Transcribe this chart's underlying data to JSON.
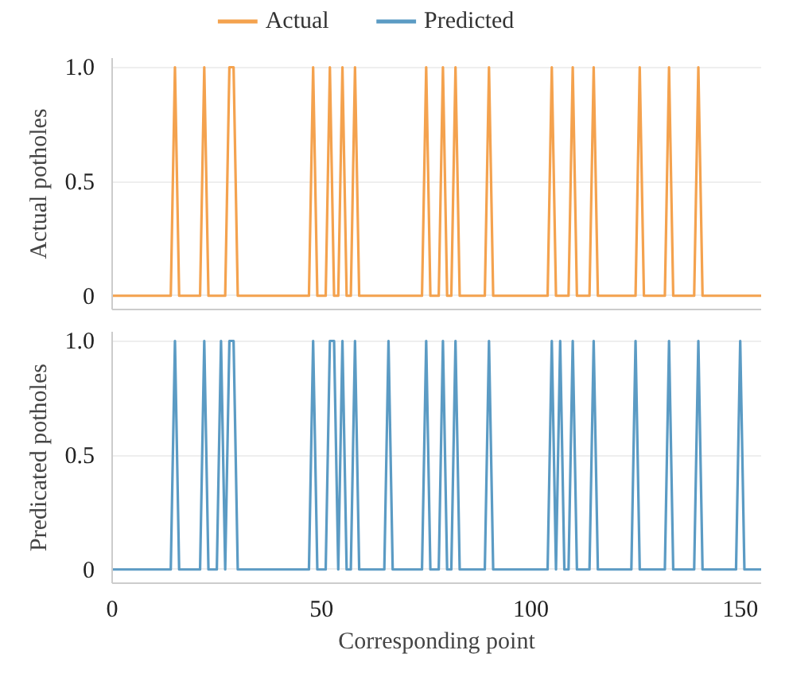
{
  "chart_data": [
    {
      "type": "line",
      "ylabel": "Actual potholes",
      "xlim": [
        0,
        155
      ],
      "ylim": [
        -0.06,
        1.04
      ],
      "yticks": [
        0,
        0.5,
        {
          "value": 1,
          "label": "1.0"
        }
      ],
      "tick_labels": "y",
      "grid": "y",
      "legend": "top",
      "series": [
        {
          "name": "Actual",
          "color": "#f4a24e",
          "x": [
            0,
            14,
            15,
            16,
            21,
            22,
            23,
            27,
            28,
            29,
            30,
            47,
            48,
            49,
            51,
            52,
            53,
            54,
            55,
            56,
            57,
            58,
            59,
            74,
            75,
            76,
            78,
            79,
            80,
            81,
            82,
            83,
            89,
            90,
            91,
            104,
            105,
            106,
            109,
            110,
            111,
            114,
            115,
            116,
            125,
            126,
            127,
            132,
            133,
            134,
            139,
            140,
            141,
            155
          ],
          "values": [
            0,
            0,
            1,
            0,
            0,
            1,
            0,
            0,
            1,
            1,
            0,
            0,
            1,
            0,
            0,
            1,
            0,
            0,
            1,
            0,
            0,
            1,
            0,
            0,
            1,
            0,
            0,
            1,
            0,
            0,
            1,
            0,
            0,
            1,
            0,
            0,
            1,
            0,
            0,
            1,
            0,
            0,
            1,
            0,
            0,
            1,
            0,
            0,
            1,
            0,
            0,
            1,
            0,
            0
          ]
        }
      ]
    },
    {
      "type": "line",
      "ylabel": "Predicated potholes",
      "xlabel": "Corresponding point",
      "xlim": [
        0,
        155
      ],
      "ylim": [
        -0.06,
        1.04
      ],
      "yticks": [
        0,
        0.5,
        {
          "value": 1,
          "label": "1.0"
        }
      ],
      "xticks": [
        0,
        50,
        100,
        150
      ],
      "grid": "y",
      "legend": "top",
      "series": [
        {
          "name": "Predicted",
          "color": "#5b9bc4",
          "x": [
            0,
            14,
            15,
            16,
            21,
            22,
            23,
            25,
            26,
            27,
            28,
            29,
            30,
            47,
            48,
            49,
            51,
            52,
            53,
            54,
            55,
            56,
            57,
            58,
            59,
            65,
            66,
            67,
            74,
            75,
            76,
            78,
            79,
            80,
            81,
            82,
            83,
            89,
            90,
            91,
            104,
            105,
            106,
            107,
            108,
            109,
            110,
            111,
            114,
            115,
            116,
            124,
            125,
            126,
            132,
            133,
            134,
            139,
            140,
            141,
            149,
            150,
            151,
            155
          ],
          "values": [
            0,
            0,
            1,
            0,
            0,
            1,
            0,
            0,
            1,
            0,
            1,
            1,
            0,
            0,
            1,
            0,
            0,
            1,
            1,
            0,
            1,
            0,
            0,
            1,
            0,
            0,
            1,
            0,
            0,
            1,
            0,
            0,
            1,
            0,
            0,
            1,
            0,
            0,
            1,
            0,
            0,
            1,
            0,
            1,
            0,
            0,
            1,
            0,
            0,
            1,
            0,
            0,
            1,
            0,
            0,
            1,
            0,
            0,
            1,
            0,
            0,
            1,
            0,
            0
          ]
        }
      ]
    }
  ]
}
